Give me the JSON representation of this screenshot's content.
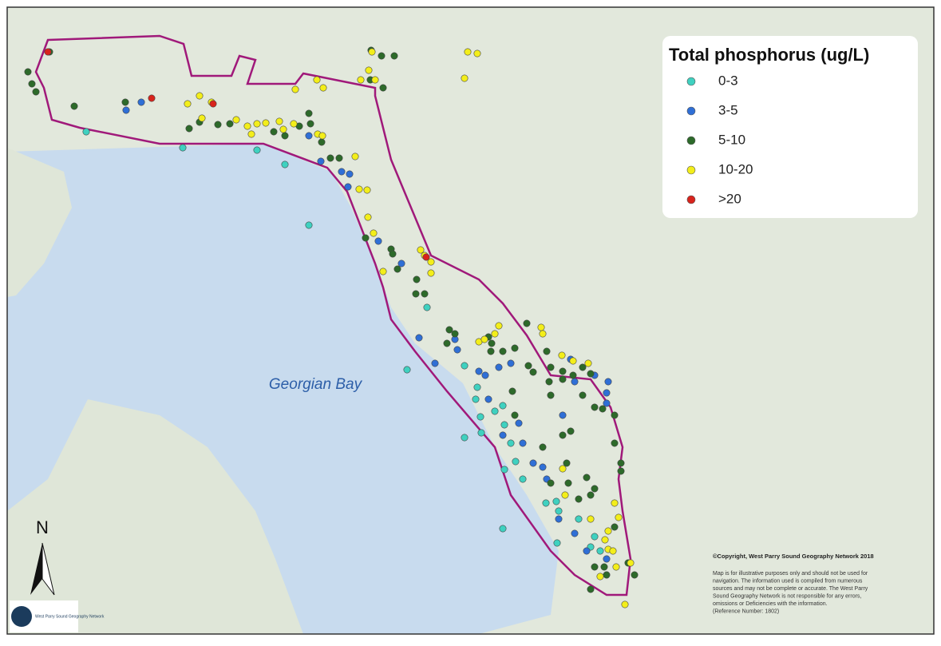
{
  "legend": {
    "title": "Total phosphorus (ug/L)",
    "items": [
      {
        "label": "0-3",
        "color": "#3fd1c0"
      },
      {
        "label": "3-5",
        "color": "#2f6fd6"
      },
      {
        "label": "5-10",
        "color": "#2d6a2a"
      },
      {
        "label": "10-20",
        "color": "#f3ee1a"
      },
      {
        "label": ">20",
        "color": "#d8231c"
      }
    ]
  },
  "labels": {
    "water": "Georgian Bay",
    "north": "N"
  },
  "credits": {
    "copyright": "©Copyright, West Parry Sound Geography Network 2018",
    "disclaimer": [
      "Map is for illustrative purposes only and should not be used for",
      "navigation.  The information used is compiled from numerous",
      "sources and may not be complete or accurate. The West Parry",
      "Sound Geography Network is not responsible for any errors,",
      "omissions or Deficiencies with the information.",
      "(Reference Number: 1802)"
    ]
  },
  "logo": {
    "text": "West Parry Sound Geography Network"
  }
}
